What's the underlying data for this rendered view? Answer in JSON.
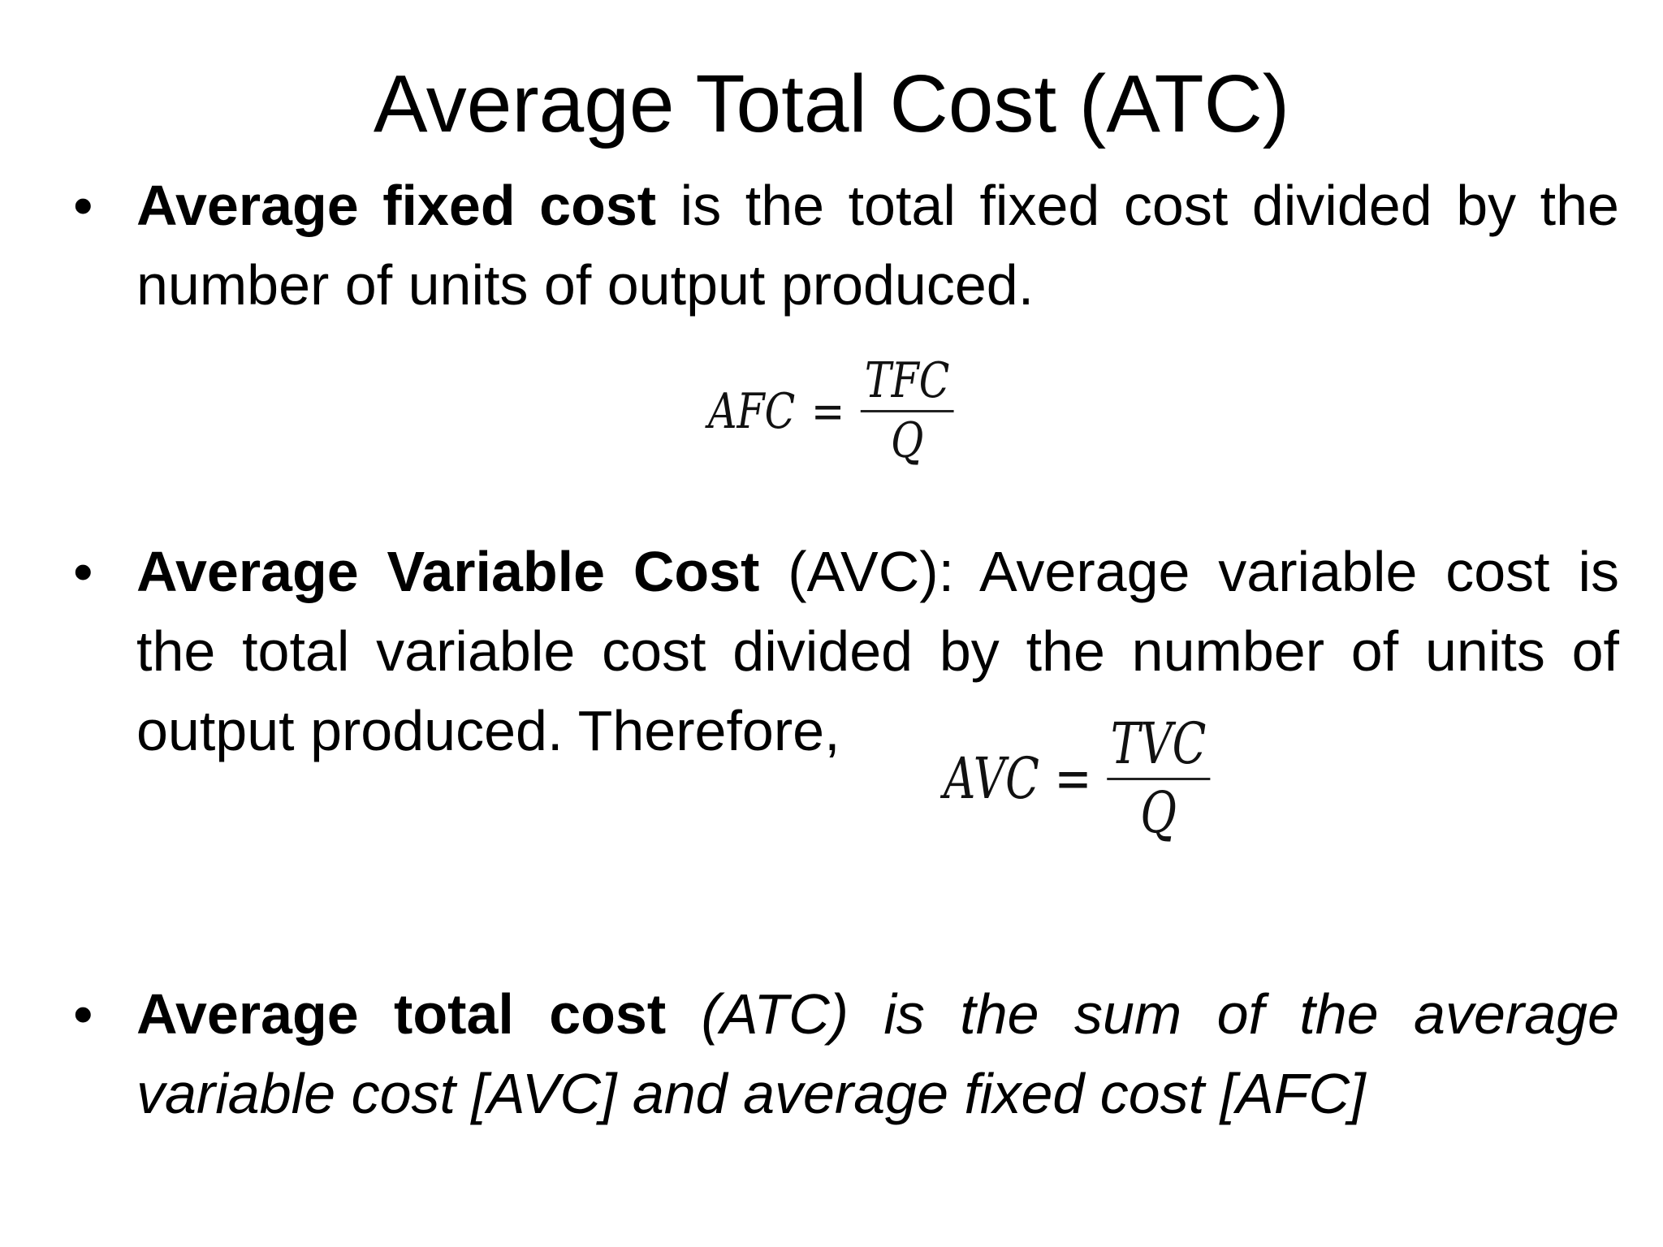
{
  "title": "Average Total Cost (ATC)",
  "bullets": [
    {
      "bold": "Average fixed cost",
      "text": " is the total fixed cost divided by the number of units of output produced."
    },
    {
      "bold": "Average Variable Cost",
      "text": " (AVC): Average variable cost is the total variable cost divided by the number of units of output produced. Therefore,"
    },
    {
      "bold": "Average total cost",
      "text": " (ATC) is the sum of the average variable cost [AVC] and average fixed cost [AFC]"
    }
  ],
  "bullet_symbol": "•",
  "formulas": {
    "afc": {
      "lhs": "AFC",
      "eq": "=",
      "numerator": "TFC",
      "denominator": "Q"
    },
    "avc": {
      "lhs": "AVC",
      "eq": "=",
      "numerator": "TVC",
      "denominator": "Q"
    }
  }
}
